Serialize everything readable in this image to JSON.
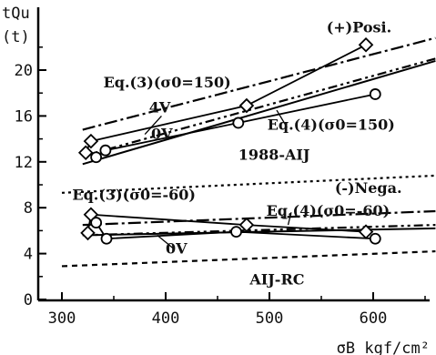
{
  "chart_data": {
    "type": "line",
    "y_unit_label": "(t)",
    "ylabel": "tQu",
    "xlabel": "σB kgf/cm²",
    "xlim": [
      280,
      670
    ],
    "ylim": [
      0,
      24
    ],
    "x_ticks": [
      300,
      400,
      500,
      600
    ],
    "y_ticks": [
      0,
      4,
      8,
      12,
      16,
      20
    ],
    "grid": false,
    "series": [
      {
        "name": "Eq.(3)(σ0=150)",
        "style": "dashdot",
        "x": [
          320,
          660
        ],
        "y": [
          14.8,
          22.8
        ]
      },
      {
        "name": "Eq.(4)(σ0=150)",
        "style": "solid",
        "x": [
          320,
          660
        ],
        "y": [
          11.8,
          20.8
        ]
      },
      {
        "name": "(+)Posi.",
        "style": "dashdot2",
        "x": [
          320,
          660
        ],
        "y": [
          12.5,
          21.0
        ]
      },
      {
        "name": "1988-AIJ",
        "style": "dotted",
        "x": [
          300,
          660
        ],
        "y": [
          9.3,
          10.8
        ]
      },
      {
        "name": "Eq.(3)(σ0=-60)",
        "style": "dashdot",
        "x": [
          320,
          660
        ],
        "y": [
          6.5,
          7.7
        ]
      },
      {
        "name": "(-)Nega.",
        "style": "dashdot2",
        "x": [
          320,
          660
        ],
        "y": [
          5.6,
          6.5
        ]
      },
      {
        "name": "Eq.(4)(σ0=-60)",
        "style": "solid",
        "x": [
          320,
          660
        ],
        "y": [
          5.6,
          6.2
        ]
      },
      {
        "name": "AIJ-RC",
        "style": "dashed",
        "x": [
          300,
          660
        ],
        "y": [
          2.9,
          4.2
        ]
      },
      {
        "name": "4V",
        "style": "markers-diamond",
        "x": [
          323,
          328,
          478,
          593
        ],
        "y": [
          12.8,
          13.8,
          16.9,
          22.2
        ]
      },
      {
        "name": "0V",
        "style": "markers-circle",
        "x": [
          333,
          342,
          470,
          602
        ],
        "y": [
          12.4,
          13.0,
          15.4,
          17.9
        ]
      },
      {
        "name": "4V",
        "style": "markers-diamond",
        "x": [
          325,
          328,
          478,
          593
        ],
        "y": [
          5.8,
          7.4,
          6.5,
          5.9
        ]
      },
      {
        "name": "0V",
        "style": "markers-circle",
        "x": [
          333,
          343,
          468,
          602
        ],
        "y": [
          6.7,
          5.3,
          5.9,
          5.3
        ]
      }
    ],
    "annotations": [
      {
        "text": "(+)Posi.",
        "x": 555,
        "y": 23.3
      },
      {
        "text": "Eq.(3)(σ0=150)",
        "x": 340,
        "y": 18.5
      },
      {
        "text": "4V",
        "x": 384,
        "y": 16.3
      },
      {
        "text": "0V",
        "x": 386,
        "y": 14.0
      },
      {
        "text": "Eq.(4)(σ0=150)",
        "x": 498,
        "y": 14.8
      },
      {
        "text": "1988-AIJ",
        "x": 470,
        "y": 12.2
      },
      {
        "text": "Eq.(3)(σ0=-60)",
        "x": 310,
        "y": 8.7
      },
      {
        "text": "(-)Nega.",
        "x": 563,
        "y": 9.3
      },
      {
        "text": "Eq.(4)(σ0=-60)",
        "x": 497,
        "y": 7.3
      },
      {
        "text": "0V",
        "x": 400,
        "y": 4.0
      },
      {
        "text": "AIJ-RC",
        "x": 481,
        "y": 1.3
      }
    ]
  }
}
